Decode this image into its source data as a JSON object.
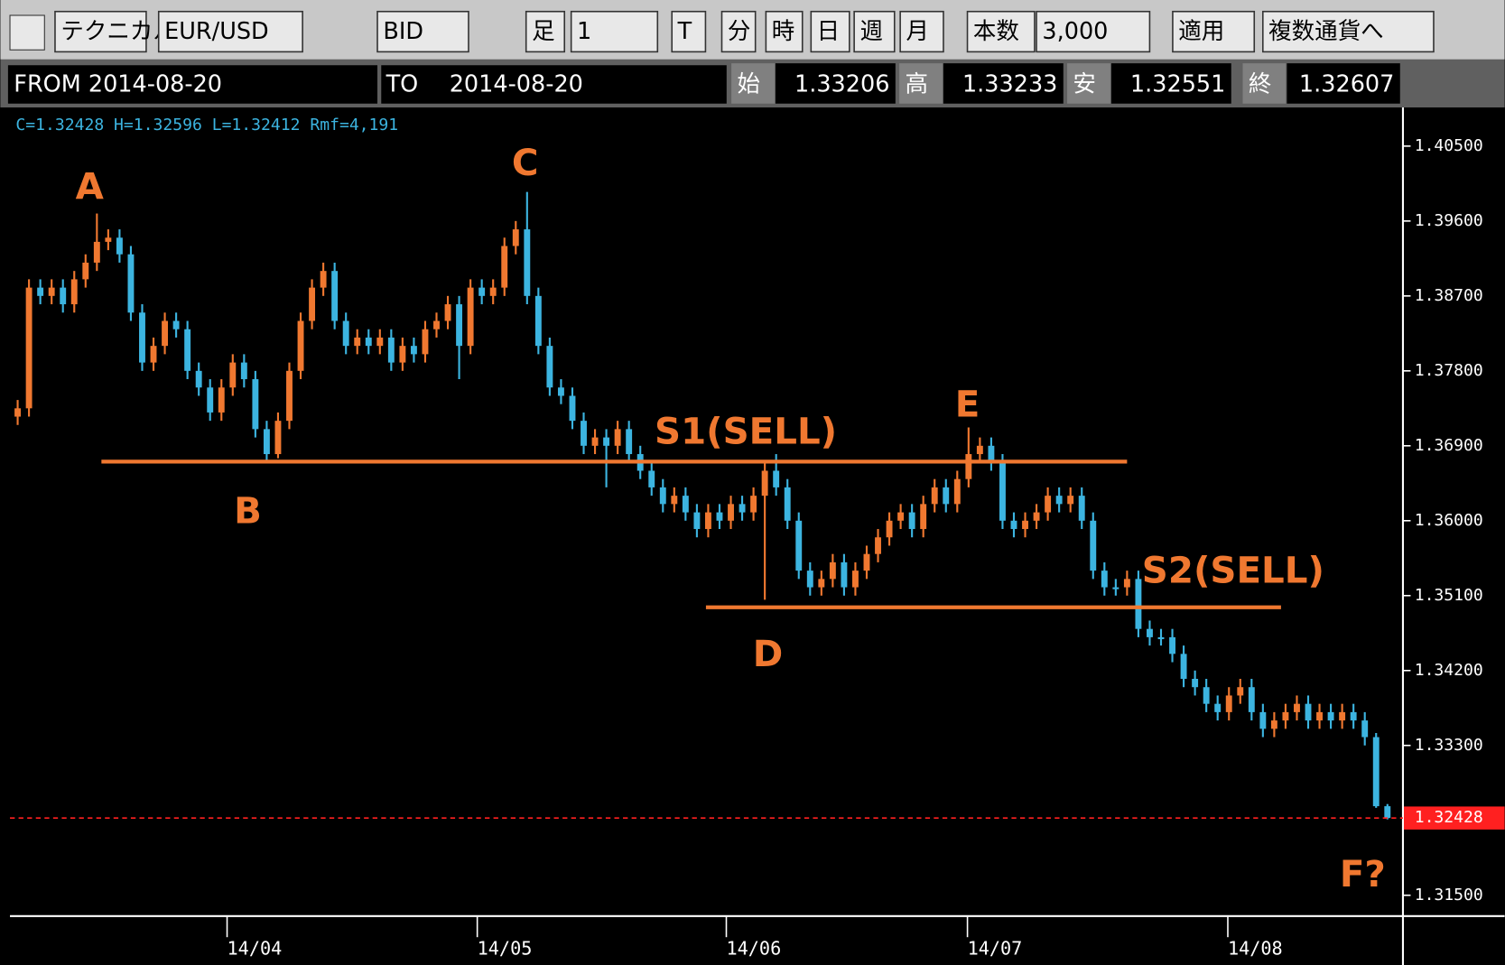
{
  "ui": {
    "toolbar": [
      "テクニカル",
      "EUR/USD",
      "BID",
      "足",
      "1",
      "T",
      "分",
      "時",
      "日",
      "週",
      "月",
      "本数",
      "3,000",
      "適用",
      "複数通貨へ"
    ],
    "range": [
      "FROM 2014-08-20",
      "TO",
      "2014-08-20"
    ],
    "quote": [
      "始",
      "1.33206",
      "高",
      "1.33233",
      "安",
      "1.32551",
      "終",
      "1.32607"
    ],
    "info": "C=1.32428 H=1.32596 L=1.32412 Rmf=4,191"
  },
  "chart_data": {
    "type": "candlestick",
    "up_color": "#f07830",
    "down_color": "#3cb4e0",
    "xlim": [
      -0.68,
      122.37
    ],
    "ylim": [
      1.3125,
      1.4093
    ],
    "xticks": [
      {
        "value": 18.5,
        "label": "14/04"
      },
      {
        "value": 40.6,
        "label": "14/05"
      },
      {
        "value": 62.6,
        "label": "14/06"
      },
      {
        "value": 83.9,
        "label": "14/07"
      },
      {
        "value": 106.9,
        "label": "14/08"
      }
    ],
    "yticks": [
      {
        "value": 1.405,
        "label": "1.40500"
      },
      {
        "value": 1.396,
        "label": "1.39600"
      },
      {
        "value": 1.387,
        "label": "1.38700"
      },
      {
        "value": 1.378,
        "label": "1.37800"
      },
      {
        "value": 1.369,
        "label": "1.36900"
      },
      {
        "value": 1.36,
        "label": "1.36000"
      },
      {
        "value": 1.351,
        "label": "1.35100"
      },
      {
        "value": 1.342,
        "label": "1.34200"
      },
      {
        "value": 1.333,
        "label": "1.33300"
      },
      {
        "value": 1.315,
        "label": "1.31500"
      }
    ],
    "last_price": 1.32428,
    "last_price_color": "#ff2020",
    "levels": [
      {
        "value": 1.3671,
        "from": 7.4,
        "to": 98
      },
      {
        "value": 1.3496,
        "from": 60.8,
        "to": 111.6
      }
    ],
    "level_color": "#f07830",
    "annotations": [
      "A",
      "B",
      "C",
      "D",
      "E",
      "F?",
      "S1(SELL)",
      "S2(SELL)"
    ],
    "ohlc": [
      [
        1.3725,
        1.3745,
        1.3715,
        1.3735
      ],
      [
        1.3735,
        1.389,
        1.3725,
        1.388
      ],
      [
        1.388,
        1.389,
        1.386,
        1.387
      ],
      [
        1.387,
        1.389,
        1.386,
        1.388
      ],
      [
        1.388,
        1.389,
        1.385,
        1.386
      ],
      [
        1.386,
        1.39,
        1.385,
        1.389
      ],
      [
        1.389,
        1.392,
        1.388,
        1.391
      ],
      [
        1.391,
        1.3969,
        1.39,
        1.3935
      ],
      [
        1.3935,
        1.395,
        1.3925,
        1.394
      ],
      [
        1.394,
        1.395,
        1.391,
        1.392
      ],
      [
        1.392,
        1.393,
        1.384,
        1.385
      ],
      [
        1.385,
        1.386,
        1.378,
        1.379
      ],
      [
        1.379,
        1.382,
        1.378,
        1.381
      ],
      [
        1.381,
        1.385,
        1.38,
        1.384
      ],
      [
        1.384,
        1.385,
        1.382,
        1.383
      ],
      [
        1.383,
        1.384,
        1.377,
        1.378
      ],
      [
        1.378,
        1.379,
        1.375,
        1.376
      ],
      [
        1.376,
        1.377,
        1.372,
        1.373
      ],
      [
        1.373,
        1.377,
        1.372,
        1.376
      ],
      [
        1.376,
        1.38,
        1.375,
        1.379
      ],
      [
        1.379,
        1.38,
        1.376,
        1.377
      ],
      [
        1.377,
        1.378,
        1.37,
        1.371
      ],
      [
        1.371,
        1.372,
        1.3672,
        1.368
      ],
      [
        1.368,
        1.373,
        1.3675,
        1.372
      ],
      [
        1.372,
        1.379,
        1.371,
        1.378
      ],
      [
        1.378,
        1.385,
        1.377,
        1.384
      ],
      [
        1.384,
        1.389,
        1.383,
        1.388
      ],
      [
        1.388,
        1.391,
        1.387,
        1.39
      ],
      [
        1.39,
        1.391,
        1.383,
        1.384
      ],
      [
        1.384,
        1.385,
        1.38,
        1.381
      ],
      [
        1.381,
        1.383,
        1.38,
        1.382
      ],
      [
        1.382,
        1.383,
        1.38,
        1.381
      ],
      [
        1.381,
        1.383,
        1.38,
        1.382
      ],
      [
        1.382,
        1.383,
        1.378,
        1.379
      ],
      [
        1.379,
        1.382,
        1.378,
        1.381
      ],
      [
        1.381,
        1.382,
        1.379,
        1.38
      ],
      [
        1.38,
        1.384,
        1.379,
        1.383
      ],
      [
        1.383,
        1.385,
        1.382,
        1.384
      ],
      [
        1.384,
        1.387,
        1.383,
        1.386
      ],
      [
        1.386,
        1.387,
        1.377,
        1.381
      ],
      [
        1.381,
        1.389,
        1.38,
        1.388
      ],
      [
        1.388,
        1.389,
        1.386,
        1.387
      ],
      [
        1.387,
        1.389,
        1.386,
        1.388
      ],
      [
        1.388,
        1.394,
        1.387,
        1.393
      ],
      [
        1.393,
        1.396,
        1.392,
        1.395
      ],
      [
        1.395,
        1.3995,
        1.386,
        1.387
      ],
      [
        1.387,
        1.388,
        1.38,
        1.381
      ],
      [
        1.381,
        1.382,
        1.375,
        1.376
      ],
      [
        1.376,
        1.377,
        1.374,
        1.375
      ],
      [
        1.375,
        1.376,
        1.371,
        1.372
      ],
      [
        1.372,
        1.373,
        1.368,
        1.369
      ],
      [
        1.369,
        1.371,
        1.368,
        1.37
      ],
      [
        1.37,
        1.371,
        1.364,
        1.369
      ],
      [
        1.369,
        1.372,
        1.368,
        1.371
      ],
      [
        1.371,
        1.372,
        1.367,
        1.368
      ],
      [
        1.368,
        1.369,
        1.365,
        1.366
      ],
      [
        1.366,
        1.367,
        1.363,
        1.364
      ],
      [
        1.364,
        1.365,
        1.361,
        1.362
      ],
      [
        1.362,
        1.364,
        1.361,
        1.363
      ],
      [
        1.363,
        1.364,
        1.36,
        1.361
      ],
      [
        1.361,
        1.362,
        1.358,
        1.359
      ],
      [
        1.359,
        1.362,
        1.358,
        1.361
      ],
      [
        1.361,
        1.362,
        1.359,
        1.36
      ],
      [
        1.36,
        1.363,
        1.359,
        1.362
      ],
      [
        1.362,
        1.363,
        1.36,
        1.361
      ],
      [
        1.361,
        1.364,
        1.36,
        1.363
      ],
      [
        1.363,
        1.367,
        1.3505,
        1.366
      ],
      [
        1.366,
        1.368,
        1.363,
        1.364
      ],
      [
        1.364,
        1.365,
        1.359,
        1.36
      ],
      [
        1.36,
        1.361,
        1.353,
        1.354
      ],
      [
        1.354,
        1.355,
        1.351,
        1.352
      ],
      [
        1.352,
        1.354,
        1.351,
        1.353
      ],
      [
        1.353,
        1.356,
        1.352,
        1.355
      ],
      [
        1.355,
        1.356,
        1.351,
        1.352
      ],
      [
        1.352,
        1.355,
        1.351,
        1.354
      ],
      [
        1.354,
        1.357,
        1.353,
        1.356
      ],
      [
        1.356,
        1.359,
        1.355,
        1.358
      ],
      [
        1.358,
        1.361,
        1.357,
        1.36
      ],
      [
        1.36,
        1.362,
        1.359,
        1.361
      ],
      [
        1.361,
        1.362,
        1.358,
        1.359
      ],
      [
        1.359,
        1.363,
        1.358,
        1.362
      ],
      [
        1.362,
        1.365,
        1.361,
        1.364
      ],
      [
        1.364,
        1.365,
        1.361,
        1.362
      ],
      [
        1.362,
        1.366,
        1.361,
        1.365
      ],
      [
        1.365,
        1.3712,
        1.364,
        1.368
      ],
      [
        1.368,
        1.37,
        1.367,
        1.369
      ],
      [
        1.369,
        1.37,
        1.366,
        1.367
      ],
      [
        1.367,
        1.368,
        1.359,
        1.36
      ],
      [
        1.36,
        1.361,
        1.358,
        1.359
      ],
      [
        1.359,
        1.361,
        1.358,
        1.36
      ],
      [
        1.36,
        1.362,
        1.359,
        1.361
      ],
      [
        1.361,
        1.364,
        1.36,
        1.363
      ],
      [
        1.363,
        1.364,
        1.361,
        1.362
      ],
      [
        1.362,
        1.364,
        1.361,
        1.363
      ],
      [
        1.363,
        1.364,
        1.359,
        1.36
      ],
      [
        1.36,
        1.361,
        1.353,
        1.354
      ],
      [
        1.354,
        1.355,
        1.351,
        1.352
      ],
      [
        1.352,
        1.353,
        1.351,
        1.352
      ],
      [
        1.352,
        1.354,
        1.351,
        1.353
      ],
      [
        1.353,
        1.354,
        1.346,
        1.347
      ],
      [
        1.347,
        1.348,
        1.345,
        1.346
      ],
      [
        1.346,
        1.347,
        1.345,
        1.346
      ],
      [
        1.346,
        1.347,
        1.343,
        1.344
      ],
      [
        1.344,
        1.345,
        1.34,
        1.341
      ],
      [
        1.341,
        1.342,
        1.339,
        1.34
      ],
      [
        1.34,
        1.341,
        1.337,
        1.338
      ],
      [
        1.338,
        1.339,
        1.336,
        1.337
      ],
      [
        1.337,
        1.34,
        1.336,
        1.339
      ],
      [
        1.339,
        1.341,
        1.338,
        1.34
      ],
      [
        1.34,
        1.341,
        1.336,
        1.337
      ],
      [
        1.337,
        1.338,
        1.334,
        1.335
      ],
      [
        1.335,
        1.337,
        1.334,
        1.336
      ],
      [
        1.336,
        1.338,
        1.335,
        1.337
      ],
      [
        1.337,
        1.339,
        1.336,
        1.338
      ],
      [
        1.338,
        1.339,
        1.335,
        1.336
      ],
      [
        1.336,
        1.338,
        1.335,
        1.337
      ],
      [
        1.337,
        1.338,
        1.335,
        1.336
      ],
      [
        1.336,
        1.338,
        1.335,
        1.337
      ],
      [
        1.337,
        1.338,
        1.335,
        1.336
      ],
      [
        1.336,
        1.337,
        1.333,
        1.334
      ],
      [
        1.334,
        1.3345,
        1.3255,
        1.3257
      ],
      [
        1.3257,
        1.32596,
        1.32412,
        1.32428
      ]
    ]
  }
}
